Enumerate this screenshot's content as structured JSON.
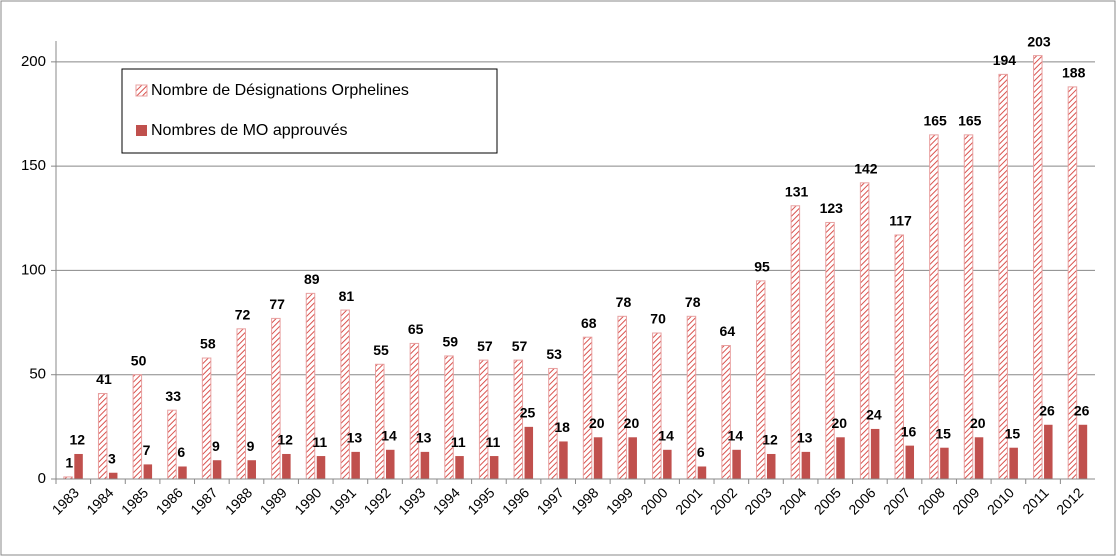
{
  "chart_data": {
    "type": "bar",
    "categories": [
      "1983",
      "1984",
      "1985",
      "1986",
      "1987",
      "1988",
      "1989",
      "1990",
      "1991",
      "1992",
      "1993",
      "1994",
      "1995",
      "1996",
      "1997",
      "1998",
      "1999",
      "2000",
      "2001",
      "2002",
      "2003",
      "2004",
      "2005",
      "2006",
      "2007",
      "2008",
      "2009",
      "2010",
      "2011",
      "2012"
    ],
    "series": [
      {
        "name": "Nombre de Désignations Orphelines",
        "color": "#d9534f",
        "pattern": "hatch",
        "values": [
          1,
          41,
          50,
          33,
          58,
          72,
          77,
          89,
          81,
          55,
          65,
          59,
          57,
          57,
          53,
          68,
          78,
          70,
          78,
          64,
          95,
          131,
          123,
          142,
          117,
          165,
          165,
          194,
          203,
          188
        ]
      },
      {
        "name": "Nombres de MO  approuvés",
        "color": "#c0504d",
        "values": [
          12,
          3,
          7,
          6,
          9,
          9,
          12,
          11,
          13,
          14,
          13,
          11,
          11,
          25,
          18,
          20,
          20,
          14,
          6,
          14,
          12,
          13,
          20,
          24,
          16,
          15,
          20,
          15,
          26,
          26
        ]
      }
    ],
    "ylim": [
      0,
      210
    ],
    "yticks": [
      0,
      50,
      100,
      150,
      200
    ],
    "grid": true,
    "legend": "upper left"
  }
}
